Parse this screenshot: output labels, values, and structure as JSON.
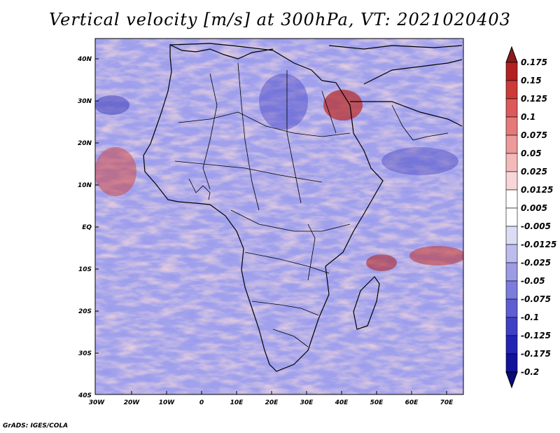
{
  "title": "Vertical velocity [m/s] at 300hPa, VT: 2021020403",
  "footer": "GrADS: IGES/COLA",
  "map": {
    "lat_labels": [
      "40N",
      "30N",
      "20N",
      "10N",
      "EQ",
      "10S",
      "20S",
      "30S",
      "40S"
    ],
    "lon_labels": [
      "30W",
      "20W",
      "10W",
      "0",
      "10E",
      "20E",
      "30E",
      "40E",
      "50E",
      "60E",
      "70E"
    ],
    "lon_range": [
      -30,
      75
    ],
    "lat_range": [
      -40,
      45
    ]
  },
  "colorbar": {
    "levels": [
      "0.175",
      "0.15",
      "0.125",
      "0.1",
      "0.075",
      "0.05",
      "0.025",
      "0.0125",
      "0.005",
      "-0.005",
      "-0.0125",
      "-0.025",
      "-0.05",
      "-0.075",
      "-0.1",
      "-0.125",
      "-0.175",
      "-0.2"
    ],
    "colors": [
      "#8b1a1a",
      "#b22222",
      "#cd3a3a",
      "#dc5a5a",
      "#e57a7a",
      "#ec9a9a",
      "#f3baba",
      "#f8d6d6",
      "#ffffff",
      "#ffffff",
      "#dcdcf5",
      "#bcbcee",
      "#9c9ce6",
      "#7c7cdc",
      "#5e5ed2",
      "#4040c6",
      "#2424b4",
      "#12129a",
      "#0a0a7c"
    ]
  }
}
